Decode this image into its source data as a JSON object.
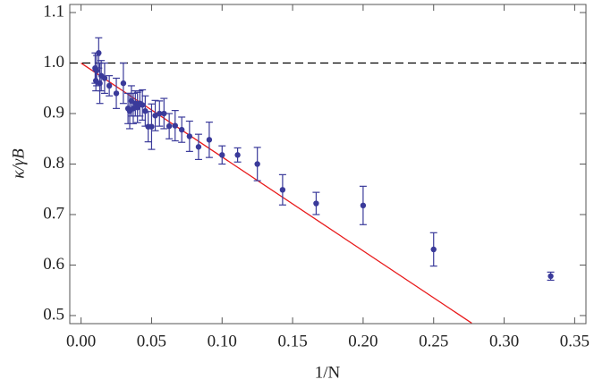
{
  "chart_data": {
    "type": "scatter",
    "xlabel": "1/N",
    "ylabel": "κ/γB",
    "xlim": [
      -0.008,
      0.358
    ],
    "ylim": [
      0.484,
      1.116
    ],
    "xticks": [
      {
        "value": 0,
        "label": "0.00"
      },
      {
        "value": 0.05,
        "label": "0.05"
      },
      {
        "value": 0.1,
        "label": "0.10"
      },
      {
        "value": 0.15,
        "label": "0.15"
      },
      {
        "value": 0.2,
        "label": "0.20"
      },
      {
        "value": 0.25,
        "label": "0.25"
      },
      {
        "value": 0.3,
        "label": "0.30"
      },
      {
        "value": 0.35,
        "label": "0.35"
      }
    ],
    "yticks": [
      0.5,
      0.6,
      0.7,
      0.8,
      0.9,
      {
        "value": 1,
        "label": "1.0"
      },
      1.1
    ],
    "series": [
      {
        "color": "#3a3a9a",
        "x": [
          0.333,
          0.25,
          0.2,
          0.1667,
          0.1429,
          0.125,
          0.111,
          0.1,
          0.0909,
          0.0833,
          0.0769,
          0.0714,
          0.0667,
          0.0625,
          0.0588,
          0.0556,
          0.0526,
          0.05,
          0.0476,
          0.0455,
          0.0435,
          0.0417,
          0.04,
          0.0385,
          0.037,
          0.0357,
          0.0345,
          0.0333,
          0.03,
          0.025,
          0.02,
          0.0167,
          0.0143,
          0.0133,
          0.0125,
          0.0111,
          0.0105,
          0.01
        ],
        "values": [
          0.578,
          0.631,
          0.718,
          0.722,
          0.749,
          0.8,
          0.818,
          0.818,
          0.848,
          0.834,
          0.855,
          0.868,
          0.876,
          0.875,
          0.9,
          0.9,
          0.896,
          0.874,
          0.874,
          0.905,
          0.917,
          0.92,
          0.912,
          0.92,
          0.91,
          0.925,
          0.905,
          0.91,
          0.96,
          0.94,
          0.955,
          0.97,
          0.975,
          0.96,
          1.02,
          0.985,
          0.965,
          0.99
        ],
        "errors": [
          0.008,
          0.033,
          0.038,
          0.022,
          0.03,
          0.033,
          0.014,
          0.018,
          0.035,
          0.025,
          0.03,
          0.025,
          0.03,
          0.025,
          0.03,
          0.025,
          0.03,
          0.045,
          0.03,
          0.03,
          0.03,
          0.025,
          0.03,
          0.025,
          0.03,
          0.03,
          0.035,
          0.03,
          0.04,
          0.03,
          0.02,
          0.03,
          0.03,
          0.04,
          0.03,
          0.03,
          0.02,
          0.03
        ]
      }
    ],
    "lines": [
      {
        "x": [
          0,
          0.277
        ],
        "values": [
          1,
          0.485
        ],
        "color": "#e8191a",
        "dashed": false
      },
      {
        "x": [
          -0.008,
          0.358
        ],
        "values": [
          1,
          1
        ],
        "color": "#000000",
        "dashed": true
      }
    ]
  }
}
